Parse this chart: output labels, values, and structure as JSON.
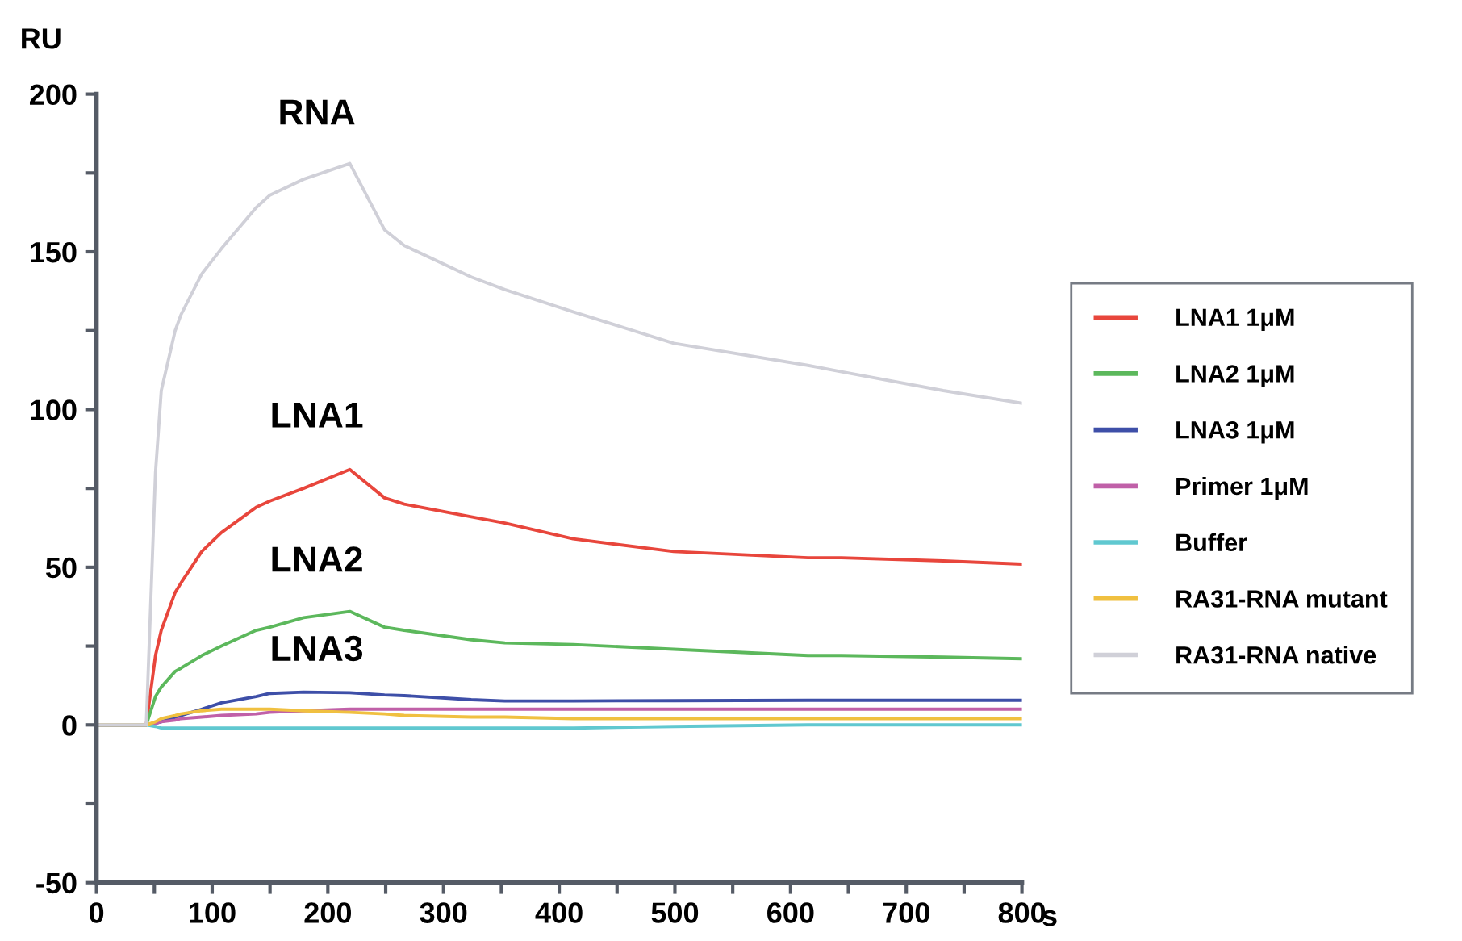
{
  "chart_data": {
    "type": "line",
    "xlabel": "s",
    "ylabel": "RU",
    "x": [
      0,
      43,
      51,
      56,
      68,
      73,
      91,
      108,
      138,
      150,
      179,
      219,
      249,
      266,
      324,
      353,
      412,
      499,
      615,
      644,
      732,
      800
    ],
    "series": [
      {
        "name": "LNA1 1μM",
        "color": "#e8463c",
        "values": [
          0,
          0,
          22,
          30,
          42,
          45,
          55,
          61,
          69,
          71,
          75,
          81,
          72,
          70,
          66,
          64,
          59,
          55,
          53,
          53,
          52,
          51
        ]
      },
      {
        "name": "LNA2 1μM",
        "color": "#5cb85c",
        "values": [
          0,
          0,
          9,
          12,
          17,
          18,
          22,
          25,
          30,
          31,
          34,
          36,
          31,
          30,
          27,
          26,
          25.5,
          24,
          22,
          22,
          21.5,
          21
        ]
      },
      {
        "name": "LNA3 1μM",
        "color": "#3e4fa8",
        "values": [
          0,
          0,
          0.5,
          1,
          2.4,
          3,
          5,
          7,
          9,
          10,
          10.4,
          10.2,
          9.5,
          9.3,
          8,
          7.6,
          7.6,
          7.7,
          7.8,
          7.8,
          7.8,
          7.8
        ]
      },
      {
        "name": "Primer 1μM",
        "color": "#c060a8",
        "values": [
          0,
          0,
          0.5,
          1,
          1.5,
          2,
          2.5,
          3,
          3.5,
          4,
          4.5,
          5,
          5,
          5,
          5,
          5,
          5,
          5,
          5,
          5,
          5,
          5
        ]
      },
      {
        "name": "Buffer",
        "color": "#60c8d0",
        "values": [
          0,
          0,
          -0.5,
          -1,
          -1,
          -1,
          -1,
          -1,
          -1,
          -1,
          -1,
          -1,
          -1,
          -1,
          -1,
          -1,
          -1,
          -0.5,
          0,
          0,
          0,
          0
        ]
      },
      {
        "name": "RA31-RNA mutant",
        "color": "#f0c040",
        "values": [
          0,
          0,
          1,
          2,
          3,
          3.5,
          4.5,
          5,
          5,
          5,
          4.5,
          4,
          3.5,
          3,
          2.5,
          2.5,
          2,
          2,
          2,
          2,
          2,
          2
        ]
      },
      {
        "name": "RA31-RNA native",
        "color": "#d0d0d8",
        "values": [
          0,
          0,
          80,
          106,
          125,
          130,
          143,
          151,
          164,
          168,
          173,
          178,
          157,
          152,
          142,
          138,
          131,
          121,
          114,
          112,
          106,
          102
        ]
      }
    ],
    "annotations": [
      "RNA",
      "LNA1",
      "LNA2",
      "LNA3"
    ],
    "xlim": [
      0,
      800
    ],
    "ylim": [
      -50,
      200
    ],
    "xticks": [
      0,
      {
        "value": 50,
        "label": null
      },
      100,
      {
        "value": 150,
        "label": null
      },
      200,
      {
        "value": 250,
        "label": null
      },
      300,
      {
        "value": 350,
        "label": null
      },
      400,
      {
        "value": 450,
        "label": null
      },
      500,
      {
        "value": 550,
        "label": null
      },
      600,
      {
        "value": 650,
        "label": null
      },
      700,
      {
        "value": 750,
        "label": null
      },
      800
    ],
    "yticks": [
      -50,
      {
        "value": -25,
        "label": null
      },
      0,
      {
        "value": 25,
        "label": null
      },
      50,
      {
        "value": 75,
        "label": null
      },
      100,
      {
        "value": 125,
        "label": null
      },
      150,
      {
        "value": 175,
        "label": null
      },
      200
    ],
    "grid": false,
    "legend": "right",
    "marker": "none",
    "line_style": "solid"
  }
}
